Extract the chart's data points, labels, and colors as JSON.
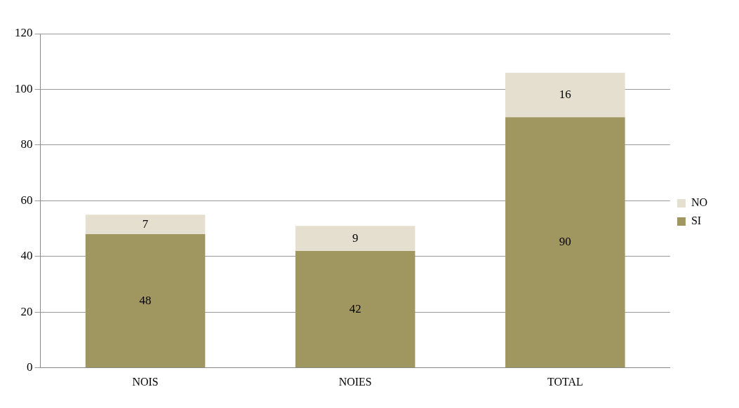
{
  "chart_data": {
    "type": "bar",
    "stacked": true,
    "categories": [
      "NOIS",
      "NOIES",
      "TOTAL"
    ],
    "series": [
      {
        "name": "SI",
        "color": "#a09660",
        "values": [
          48,
          42,
          90
        ]
      },
      {
        "name": "NO",
        "color": "#e4dfcf",
        "values": [
          7,
          9,
          16
        ]
      }
    ],
    "ylim": [
      0,
      120
    ],
    "yticks": [
      0,
      20,
      40,
      60,
      80,
      100,
      120
    ],
    "grid": "y",
    "legend": "right",
    "data_labels": true
  }
}
